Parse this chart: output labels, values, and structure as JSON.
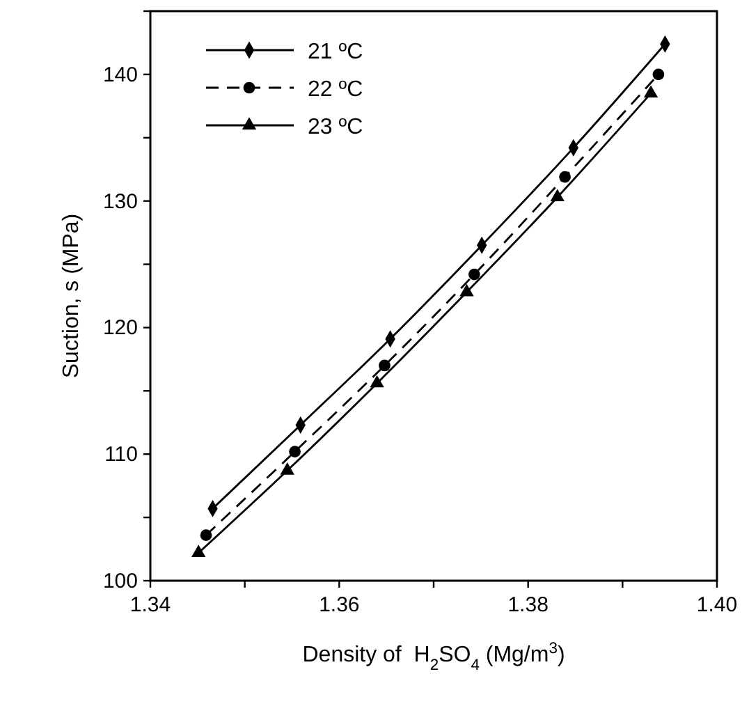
{
  "chart_data": {
    "type": "line",
    "xlabel": "Density of  H$_{2}$SO$_{4}$ (Mg/m$^{3}$)",
    "ylabel": "Suction, s (MPa)",
    "xlim": [
      1.34,
      1.4
    ],
    "xticks": [
      1.34,
      {
        "value": 1.35,
        "label": null
      },
      1.36,
      {
        "value": 1.37,
        "label": null
      },
      1.38,
      {
        "value": 1.39,
        "label": null
      },
      {
        "value": 1.4,
        "label": "1.40"
      }
    ],
    "ylim": [
      100,
      145
    ],
    "yticks": [
      100,
      {
        "value": 105,
        "label": null
      },
      110,
      {
        "value": 115,
        "label": null
      },
      120,
      {
        "value": 125,
        "label": null
      },
      130,
      {
        "value": 135,
        "label": null
      },
      140,
      {
        "value": 145,
        "label": null
      }
    ],
    "grid": false,
    "legend": "top left",
    "series": [
      {
        "name": "21 ºC",
        "color": "#000000",
        "marker": "diamond",
        "line_style": "solid",
        "x": [
          1.3466,
          1.3559,
          1.3654,
          1.3751,
          1.3848,
          1.3945
        ],
        "values": [
          105.7,
          112.3,
          119.1,
          126.5,
          134.2,
          142.4
        ]
      },
      {
        "name": "22 ºC",
        "color": "#000000",
        "marker": "circle",
        "line_style": "dashed",
        "x": [
          1.3459,
          1.3553,
          1.3648,
          1.3743,
          1.3839,
          1.3938
        ],
        "values": [
          103.6,
          110.2,
          117.0,
          124.2,
          131.9,
          140.0
        ]
      },
      {
        "name": "23 ºC",
        "color": "#000000",
        "marker": "triangle",
        "line_style": "solid",
        "x": [
          1.3451,
          1.3545,
          1.364,
          1.3735,
          1.3831,
          1.393
        ],
        "values": [
          102.2,
          108.7,
          115.6,
          122.8,
          130.3,
          138.5
        ]
      }
    ]
  }
}
